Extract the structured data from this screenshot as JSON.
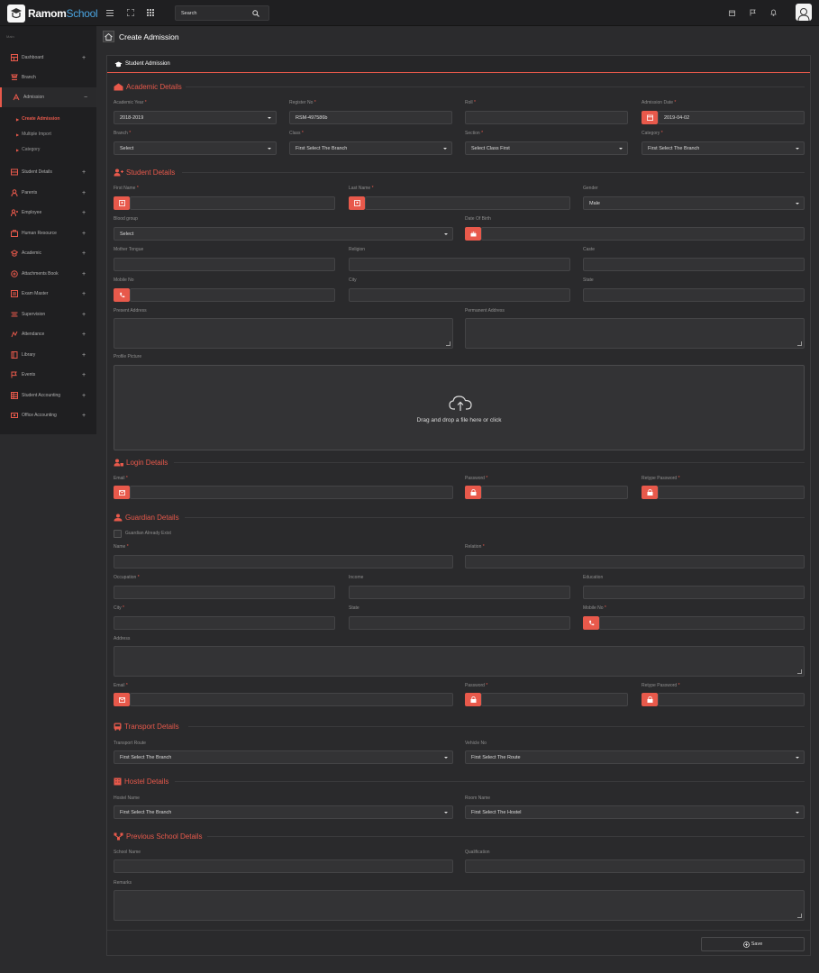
{
  "brand": {
    "name_a": "Ramom",
    "name_b": "School"
  },
  "topbar": {
    "search_placeholder": "Search"
  },
  "sidebar": {
    "main_label": "Main",
    "items": [
      {
        "label": "Dashboard",
        "icon": "dashboard-icon",
        "expand": "+"
      },
      {
        "label": "Branch",
        "icon": "branch-icon",
        "expand": ""
      },
      {
        "label": "Admission",
        "icon": "admission-icon",
        "expand": "−"
      },
      {
        "label": "Student Details",
        "icon": "student-icon",
        "expand": "+"
      },
      {
        "label": "Parents",
        "icon": "parents-icon",
        "expand": "+"
      },
      {
        "label": "Employee",
        "icon": "employee-icon",
        "expand": "+"
      },
      {
        "label": "Human Resource",
        "icon": "hr-icon",
        "expand": "+"
      },
      {
        "label": "Academic",
        "icon": "academic-icon",
        "expand": "+"
      },
      {
        "label": "Attachments Book",
        "icon": "attachments-icon",
        "expand": "+"
      },
      {
        "label": "Exam Master",
        "icon": "exam-icon",
        "expand": "+"
      },
      {
        "label": "Supervision",
        "icon": "supervision-icon",
        "expand": "+"
      },
      {
        "label": "Attendance",
        "icon": "attendance-icon",
        "expand": "+"
      },
      {
        "label": "Library",
        "icon": "library-icon",
        "expand": "+"
      },
      {
        "label": "Events",
        "icon": "events-icon",
        "expand": "+"
      },
      {
        "label": "Student Accounting",
        "icon": "accounting-icon",
        "expand": "+"
      },
      {
        "label": "Office Accounting",
        "icon": "office-accounting-icon",
        "expand": "+"
      }
    ],
    "admission_sub": [
      "Create Admission",
      "Multiple Import",
      "Category"
    ]
  },
  "page": {
    "title": "Create Admission"
  },
  "panel": {
    "title": "Student Admission"
  },
  "sections": {
    "academic": "Academic Details",
    "student": "Student Details",
    "login": "Login Details",
    "guardian": "Guardian Details",
    "transport": "Transport Details",
    "hostel": "Hostel Details",
    "previous": "Previous School Details"
  },
  "academic": {
    "year_label": "Academic Year",
    "year_value": "2018-2019",
    "register_label": "Register No",
    "register_value": "RSM-497586b",
    "roll_label": "Roll",
    "date_label": "Admission Date",
    "date_value": "2019-04-02",
    "branch_label": "Branch",
    "branch_value": "Select",
    "class_label": "Class",
    "class_value": "First Select The Branch",
    "section_label": "Section",
    "section_value": "Select Class First",
    "category_label": "Category",
    "category_value": "First Select The Branch"
  },
  "student": {
    "first_name": "First Name",
    "last_name": "Last Name",
    "gender": "Gender",
    "gender_value": "Male",
    "blood_group": "Blood group",
    "blood_value": "Select",
    "dob": "Date Of Birth",
    "mother_tongue": "Mother Tongue",
    "religion": "Religion",
    "caste": "Caste",
    "mobile": "Mobile No",
    "city": "City",
    "state": "State",
    "present_address": "Present Address",
    "permanent_address": "Permanent Address",
    "profile_picture": "Profile Picture",
    "dropzone_text": "Drag and drop a file here or click"
  },
  "login": {
    "email": "Email",
    "password": "Password",
    "retype": "Retype Password"
  },
  "guardian": {
    "exist": "Guardian Already Exist",
    "name": "Name",
    "relation": "Relation",
    "occupation": "Occupation",
    "income": "Income",
    "education": "Education",
    "city": "City",
    "state": "State",
    "mobile": "Mobile No",
    "address": "Address",
    "email": "Email",
    "password": "Password",
    "retype": "Retype Password"
  },
  "transport": {
    "route_label": "Transport Route",
    "route_value": "First Select The Branch",
    "vehicle_label": "Vehicle No",
    "vehicle_value": "First Select The Route"
  },
  "hostel": {
    "name_label": "Hostel Name",
    "name_value": "First Select The Branch",
    "room_label": "Room Name",
    "room_value": "First Select The Hostel"
  },
  "previous": {
    "school": "School Name",
    "qualification": "Qualification",
    "remarks": "Remarks"
  },
  "save_label": "Save",
  "required_mark": "*",
  "colors": {
    "accent": "#e8594b",
    "bg": "#2b2b2d",
    "sidebar": "#1f1f21"
  }
}
